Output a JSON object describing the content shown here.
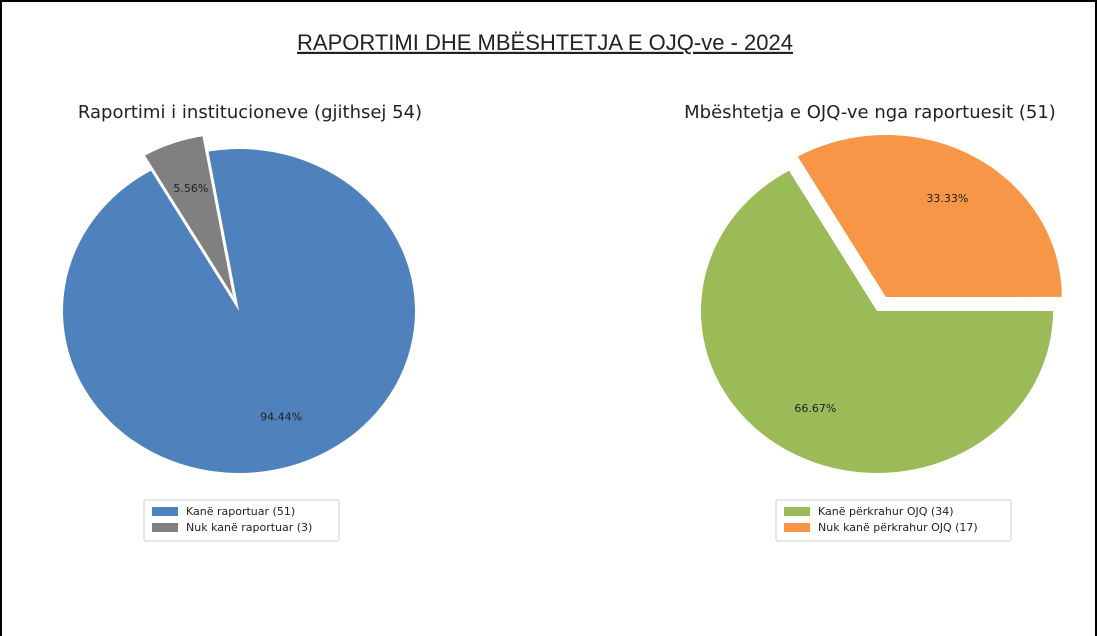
{
  "title": "RAPORTIMI DHE MBËSHTETJA E OJQ-ve - 2024",
  "chart_data": [
    {
      "type": "pie",
      "title": "Raportimi i institucioneve (gjithsej 54)",
      "categories": [
        "Kanë raportuar (51)",
        "Nuk kanë raportuar (3)"
      ],
      "values": [
        94.44,
        5.56
      ],
      "value_labels": [
        "94.44%",
        "5.56%"
      ],
      "colors": [
        "#4f81bd",
        "#808080"
      ],
      "explode": [
        false,
        true
      ],
      "legend": "bottom"
    },
    {
      "type": "pie",
      "title": "Mbështetja e OJQ-ve nga raportuesit (51)",
      "categories": [
        "Kanë përkrahur OJQ (34)",
        "Nuk kanë përkrahur OJQ (17)"
      ],
      "values": [
        66.67,
        33.33
      ],
      "value_labels": [
        "66.67%",
        "33.33%"
      ],
      "colors": [
        "#9bbb59",
        "#f79646"
      ],
      "explode": [
        false,
        true
      ],
      "legend": "bottom"
    }
  ]
}
